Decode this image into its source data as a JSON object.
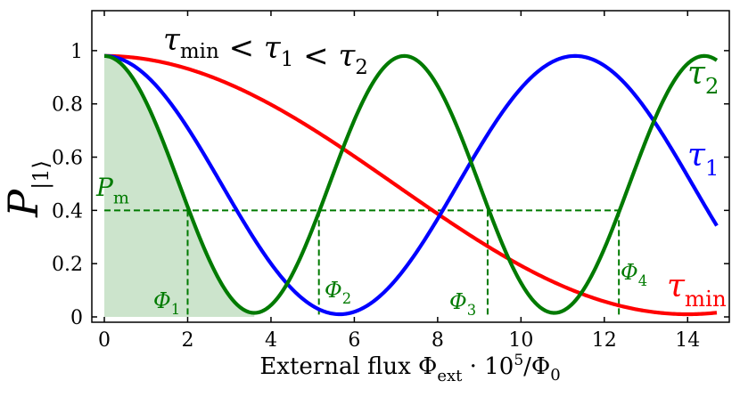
{
  "chart_data": {
    "type": "line",
    "annotation": "τmin < τ1 < τ2",
    "xlabel": "External flux Φext · 10⁵/Φ0",
    "ylabel": "P|1⟩",
    "xlim": [
      -0.3,
      15.0
    ],
    "ylim": [
      -0.02,
      1.15
    ],
    "x_ticks": [
      0,
      2,
      4,
      6,
      8,
      10,
      12,
      14
    ],
    "y_ticks": [
      0,
      0.2,
      0.4,
      0.6,
      0.8,
      1
    ],
    "x_tick_labels": [
      "0",
      "2",
      "4",
      "6",
      "8",
      "10",
      "12",
      "14"
    ],
    "y_tick_labels": [
      "0",
      "0.2",
      "0.4",
      "0.6",
      "0.8",
      "1"
    ],
    "grid": false,
    "series": [
      {
        "name": "τmin",
        "color": "#ff0000",
        "amplitude": 0.97,
        "offset": 0.01,
        "period": 28.0,
        "x_end": 14.7
      },
      {
        "name": "τ1",
        "color": "#0000ff",
        "amplitude": 0.97,
        "offset": 0.01,
        "period": 11.3,
        "x_end": 14.7
      },
      {
        "name": "τ2",
        "color": "#007a00",
        "amplitude": 0.965,
        "offset": 0.015,
        "period": 7.2,
        "x_end": 14.7
      }
    ],
    "threshold": {
      "label": "Pm",
      "value": 0.4,
      "x_end": 12.35,
      "color": "#007a00"
    },
    "shaded_region": {
      "x_start": 0,
      "x_end": 3.6,
      "series": "τ2",
      "color": "#007a00"
    },
    "flux_markers": [
      {
        "label": "Φ1",
        "x": 2.0
      },
      {
        "label": "Φ2",
        "x": 5.15
      },
      {
        "label": "Φ3",
        "x": 9.2
      },
      {
        "label": "Φ4",
        "x": 12.35
      }
    ]
  }
}
